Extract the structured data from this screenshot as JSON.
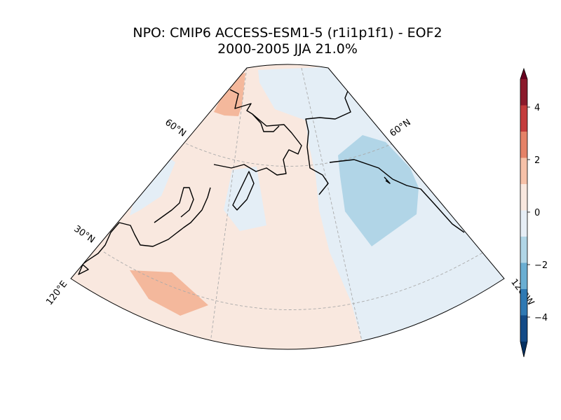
{
  "title": {
    "line1": "NPO: CMIP6 ACCESS-ESM1-5 (r1i1p1f1) - EOF2",
    "line2": "2000-2005 JJA 21.0%"
  },
  "map": {
    "projection": "Lambert conformal sector",
    "lat_labels": [
      "60°N",
      "60°N",
      "30°N"
    ],
    "lon_labels": [
      "120°E",
      "120°W"
    ],
    "gridlines": "dashed gray",
    "coastlines": true
  },
  "colorbar": {
    "tick_labels": [
      "4",
      "2",
      "0",
      "−2",
      "−4"
    ],
    "levels": [
      {
        "range": "4 to 5",
        "color": "#8b1a2b"
      },
      {
        "range": "3 to 4",
        "color": "#c43c3c"
      },
      {
        "range": "2 to 3",
        "color": "#e58267"
      },
      {
        "range": "1 to 2",
        "color": "#f6c1a8"
      },
      {
        "range": "0 to 1",
        "color": "#f9e8df"
      },
      {
        "range": "-1 to 0",
        "color": "#e6eef6"
      },
      {
        "range": "-2 to -1",
        "color": "#b0d5e6"
      },
      {
        "range": "-3 to -2",
        "color": "#6aaed2"
      },
      {
        "range": "-4 to -3",
        "color": "#2f79b3"
      },
      {
        "range": "-5 to -4",
        "color": "#134b87"
      }
    ],
    "extend": "both"
  },
  "colors": {
    "positive_weak": "#f9e8df",
    "positive_medium": "#f6bba3",
    "positive_strong": "#f4b89c",
    "negative_weak": "#e4eef6",
    "negative_medium": "#b1d5e7"
  }
}
